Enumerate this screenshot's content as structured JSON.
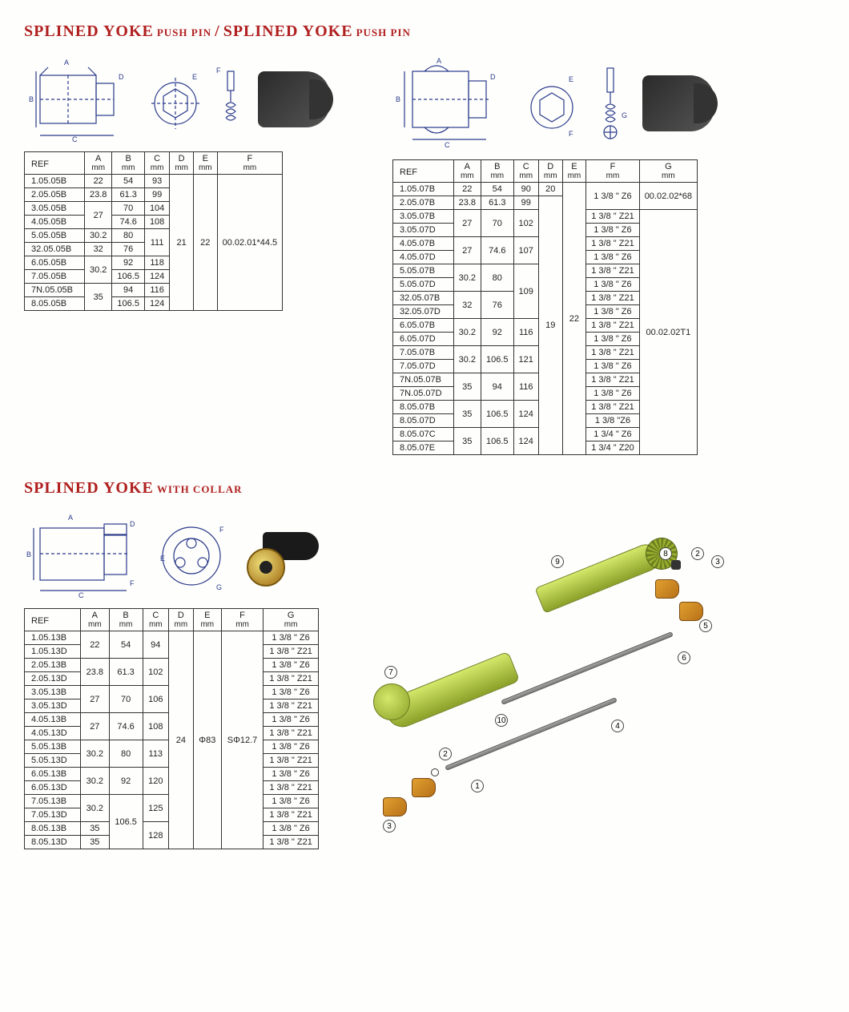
{
  "titles": {
    "t1_main": "SPLINED YOKE",
    "t1_sub": "PUSH PIN",
    "t2_main": "SPLINED YOKE",
    "t2_sub": "PUSH PIN",
    "t3_main": "SPLINED YOKE",
    "t3_sub": "WITH COLLAR",
    "sep": "/"
  },
  "diagram_labels": {
    "A": "A",
    "B": "B",
    "C": "C",
    "D": "D",
    "E": "E",
    "F": "F",
    "G": "G"
  },
  "mm": "mm",
  "ref_h": "REF",
  "table1": {
    "cols": [
      "A",
      "B",
      "C",
      "D",
      "E",
      "F"
    ],
    "shared": {
      "D": "21",
      "E": "22",
      "F": "00.02.01*44.5"
    },
    "rows": [
      {
        "ref": "1.05.05B",
        "A": "22",
        "B": "54",
        "C": "93"
      },
      {
        "ref": "2.05.05B",
        "A": "23.8",
        "B": "61.3",
        "C": "99"
      },
      {
        "ref": "3.05.05B",
        "A": "27",
        "B": "70",
        "C": "104",
        "A_rs": 2
      },
      {
        "ref": "4.05.05B",
        "B": "74.6",
        "C": "108"
      },
      {
        "ref": "5.05.05B",
        "A": "30.2",
        "B": "80",
        "C": "111",
        "C_rs": 2
      },
      {
        "ref": "32.05.05B",
        "A": "32",
        "B": "76"
      },
      {
        "ref": "6.05.05B",
        "A": "30.2",
        "B": "92",
        "C": "118",
        "A_rs": 2
      },
      {
        "ref": "7.05.05B",
        "B": "106.5",
        "C": "124"
      },
      {
        "ref": "7N.05.05B",
        "A": "35",
        "B": "94",
        "C": "116",
        "A_rs": 2
      },
      {
        "ref": "8.05.05B",
        "B": "106.5",
        "C": "124"
      }
    ]
  },
  "table2": {
    "cols": [
      "A",
      "B",
      "C",
      "D",
      "E",
      "F",
      "G"
    ],
    "shared": {
      "D_top": "20",
      "D_rest": "19",
      "E": "22",
      "G_top": "00.02.02*68",
      "G_rest": "00.02.02T1"
    },
    "rows": [
      {
        "ref": "1.05.07B",
        "A": "22",
        "B": "54",
        "C": "90",
        "F": "1 3/8 \"  Z6",
        "F_rs": 2
      },
      {
        "ref": "2.05.07B",
        "A": "23.8",
        "B": "61.3",
        "C": "99"
      },
      {
        "ref": "3.05.07B",
        "A": "27",
        "A_rs": 2,
        "B": "70",
        "B_rs": 2,
        "C": "102",
        "C_rs": 2,
        "F": "1 3/8 \"  Z21"
      },
      {
        "ref": "3.05.07D",
        "F": "1 3/8 \"  Z6"
      },
      {
        "ref": "4.05.07B",
        "A": "27",
        "A_rs": 2,
        "B": "74.6",
        "B_rs": 2,
        "C": "107",
        "C_rs": 2,
        "F": "1 3/8 \"  Z21"
      },
      {
        "ref": "4.05.07D",
        "F": "1 3/8 \"  Z6"
      },
      {
        "ref": "5.05.07B",
        "A": "30.2",
        "A_rs": 2,
        "B": "80",
        "B_rs": 2,
        "C": "109",
        "C_rs": 4,
        "F": "1 3/8 \"  Z21"
      },
      {
        "ref": "5.05.07D",
        "F": "1 3/8 \"  Z6"
      },
      {
        "ref": "32.05.07B",
        "A": "32",
        "A_rs": 2,
        "B": "76",
        "B_rs": 2,
        "F": "1 3/8 \"  Z21"
      },
      {
        "ref": "32.05.07D",
        "F": "1 3/8 \"  Z6"
      },
      {
        "ref": "6.05.07B",
        "A": "30.2",
        "A_rs": 2,
        "B": "92",
        "B_rs": 2,
        "C": "116",
        "C_rs": 2,
        "F": "1 3/8 \"  Z21"
      },
      {
        "ref": "6.05.07D",
        "F": "1 3/8 \"   Z6"
      },
      {
        "ref": "7.05.07B",
        "A": "30.2",
        "A_rs": 2,
        "B": "106.5",
        "B_rs": 2,
        "C": "121",
        "C_rs": 2,
        "F": "1 3/8 \"  Z21"
      },
      {
        "ref": "7.05.07D",
        "F": "1 3/8 \"   Z6"
      },
      {
        "ref": "7N.05.07B",
        "A": "35",
        "A_rs": 2,
        "B": "94",
        "B_rs": 2,
        "C": "116",
        "C_rs": 2,
        "F": "1 3/8 \"  Z21"
      },
      {
        "ref": "7N.05.07D",
        "F": "1 3/8 \"   Z6"
      },
      {
        "ref": "8.05.07B",
        "A": "35",
        "A_rs": 2,
        "B": "106.5",
        "B_rs": 2,
        "C": "124",
        "C_rs": 2,
        "F": "1 3/8 \"  Z21"
      },
      {
        "ref": "8.05.07D",
        "F": "1 3/8 \"Z6"
      },
      {
        "ref": "8.05.07C",
        "A": "35",
        "A_rs": 2,
        "B": "106.5",
        "B_rs": 2,
        "C": "124",
        "C_rs": 2,
        "F": "1 3/4 \"  Z6"
      },
      {
        "ref": "8.05.07E",
        "F": "1 3/4 \"  Z20"
      }
    ]
  },
  "table3": {
    "cols": [
      "A",
      "B",
      "C",
      "D",
      "E",
      "F",
      "G"
    ],
    "shared": {
      "D": "24",
      "E": "Φ83",
      "F": "SΦ12.7"
    },
    "rows": [
      {
        "ref": "1.05.13B",
        "A": "22",
        "A_rs": 2,
        "B": "54",
        "B_rs": 2,
        "C": "94",
        "C_rs": 2,
        "G": "1 3/8 \"  Z6"
      },
      {
        "ref": "1.05.13D",
        "G": "1 3/8 \"  Z21"
      },
      {
        "ref": "2.05.13B",
        "A": "23.8",
        "A_rs": 2,
        "B": "61.3",
        "B_rs": 2,
        "C": "102",
        "C_rs": 2,
        "G": "1 3/8 \"  Z6"
      },
      {
        "ref": "2.05.13D",
        "G": "1 3/8 \"  Z21"
      },
      {
        "ref": "3.05.13B",
        "A": "27",
        "A_rs": 2,
        "B": "70",
        "B_rs": 2,
        "C": "106",
        "C_rs": 2,
        "G": "1 3/8 \"  Z6"
      },
      {
        "ref": "3.05.13D",
        "G": "1 3/8 \"  Z21"
      },
      {
        "ref": "4.05.13B",
        "A": "27",
        "A_rs": 2,
        "B": "74.6",
        "B_rs": 2,
        "C": "108",
        "C_rs": 2,
        "G": "1 3/8 \"  Z6"
      },
      {
        "ref": "4.05.13D",
        "G": "1 3/8 \"  Z21"
      },
      {
        "ref": "5.05.13B",
        "A": "30.2",
        "A_rs": 2,
        "B": "80",
        "B_rs": 2,
        "C": "113",
        "C_rs": 2,
        "G": "1 3/8 \"  Z6"
      },
      {
        "ref": "5.05.13D",
        "G": "1 3/8 \"  Z21"
      },
      {
        "ref": "6.05.13B",
        "A": "30.2",
        "A_rs": 2,
        "B": "92",
        "B_rs": 2,
        "C": "120",
        "C_rs": 2,
        "G": "1 3/8 \"  Z6"
      },
      {
        "ref": "6.05.13D",
        "G": "1 3/8 \"  Z21"
      },
      {
        "ref": "7.05.13B",
        "A": "30.2",
        "A_rs": 2,
        "B": "106.5",
        "B_rs": 4,
        "C": "125",
        "C_rs": 2,
        "G": "1 3/8 \"  Z6"
      },
      {
        "ref": "7.05.13D",
        "G": "1 3/8 \"  Z21"
      },
      {
        "ref": "8.05.13B",
        "A": "35",
        "C": "128",
        "C_rs": 2,
        "G": "1 3/8 \"  Z6"
      },
      {
        "ref": "8.05.13D",
        "A": "35",
        "G": "1 3/8 \"  Z21"
      }
    ]
  },
  "exploded_callouts": [
    "1",
    "2",
    "3",
    "4",
    "5",
    "6",
    "7",
    "8",
    "9",
    "10"
  ],
  "colors": {
    "title": "#b02020",
    "line": "#2a3a8a",
    "border": "#333333",
    "green1": "#d4e86a",
    "green2": "#8aa028",
    "brass1": "#efe07a",
    "brass2": "#b58a2e"
  }
}
